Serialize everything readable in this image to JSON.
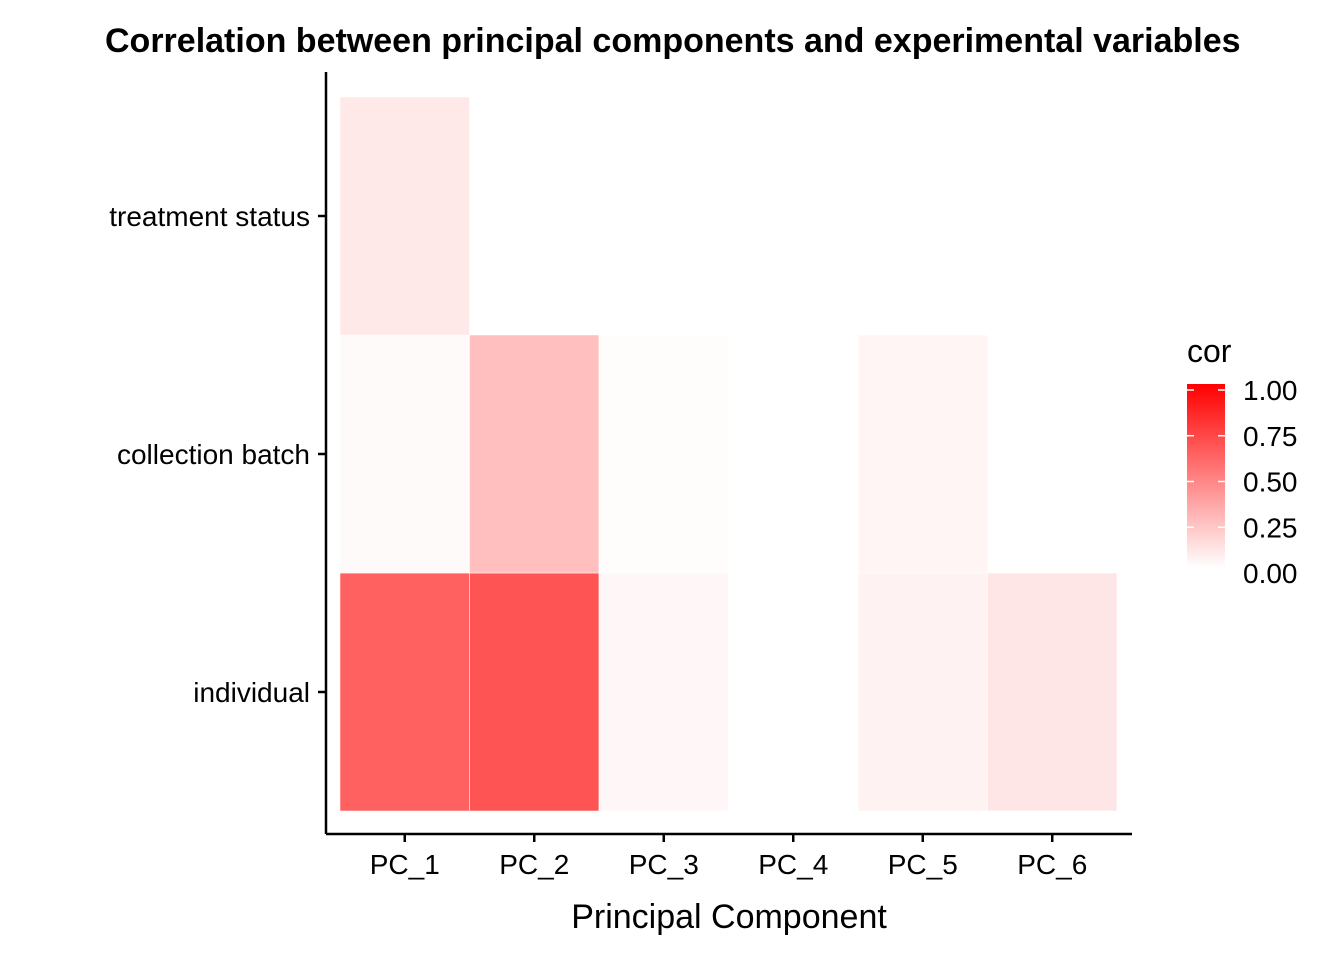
{
  "chart_data": {
    "type": "heatmap",
    "title": "Correlation between principal components and experimental variables",
    "xlabel": "Principal Component",
    "ylabel": "",
    "x": [
      "PC_1",
      "PC_2",
      "PC_3",
      "PC_4",
      "PC_5",
      "PC_6"
    ],
    "y": [
      "individual",
      "collection batch",
      "treatment status"
    ],
    "values": [
      [
        0.62,
        0.67,
        0.03,
        0.0,
        0.05,
        0.1
      ],
      [
        0.02,
        0.25,
        0.01,
        0.0,
        0.04,
        0.0
      ],
      [
        0.09,
        0.0,
        0.0,
        0.0,
        0.0,
        0.0
      ]
    ],
    "legend": {
      "title": "cor",
      "ticks": [
        "0.00",
        "0.25",
        "0.50",
        "0.75",
        "1.00"
      ],
      "range": [
        0,
        1
      ],
      "low_color": "#ffffff",
      "high_color": "#ff0000",
      "placement": "right"
    },
    "grid": false
  }
}
